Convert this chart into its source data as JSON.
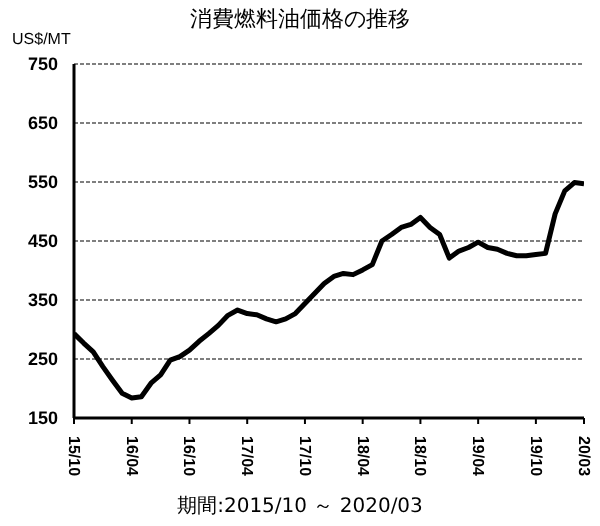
{
  "chart_data": {
    "type": "line",
    "title": "消費燃料油価格の推移",
    "ylabel": "US$/MT",
    "annotations": [
      "期間:2015/10 ～ 2020/03"
    ],
    "categories": [
      "15/10",
      null,
      null,
      null,
      null,
      null,
      "16/04",
      null,
      null,
      null,
      null,
      null,
      "16/10",
      null,
      null,
      null,
      null,
      null,
      "17/04",
      null,
      null,
      null,
      null,
      null,
      "17/10",
      null,
      null,
      null,
      null,
      null,
      "18/04",
      null,
      null,
      null,
      null,
      null,
      "18/10",
      null,
      null,
      null,
      null,
      null,
      "19/04",
      null,
      null,
      null,
      null,
      null,
      "19/10",
      null,
      null,
      null,
      null,
      "20/03"
    ],
    "series": [
      {
        "color": "#000000",
        "values": [
          293,
          277,
          262,
          237,
          214,
          192,
          184,
          186,
          209,
          223,
          248,
          254,
          265,
          280,
          293,
          307,
          324,
          333,
          327,
          325,
          318,
          313,
          318,
          327,
          344,
          361,
          378,
          390,
          395,
          393,
          401,
          410,
          450,
          461,
          473,
          478,
          490,
          473,
          461,
          421,
          433,
          439,
          448,
          439,
          436,
          429,
          425,
          425,
          427,
          429,
          496,
          535,
          549,
          547
        ]
      }
    ],
    "ylim": [
      150,
      750
    ],
    "yticks": [
      150,
      250,
      350,
      450,
      550,
      650,
      750
    ],
    "grid": "y",
    "legend": false,
    "marker": "none",
    "line_style": "solid"
  }
}
